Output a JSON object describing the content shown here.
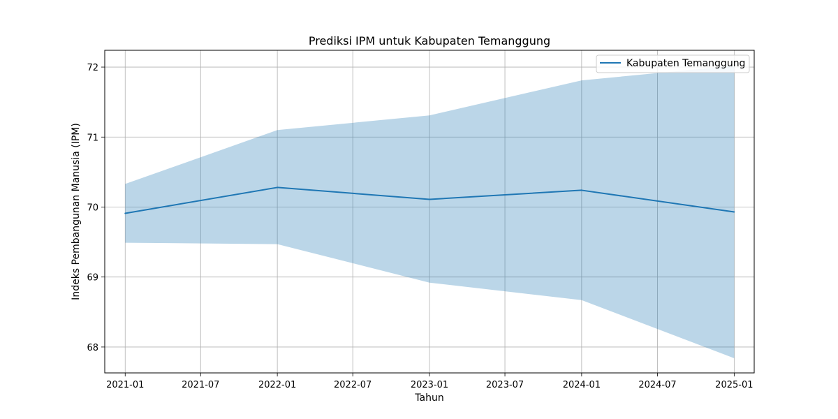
{
  "chart_data": {
    "type": "line",
    "title": "Prediksi IPM untuk Kabupaten Temanggung",
    "xlabel": "Tahun",
    "ylabel": "Indeks Pembangunan Manusia (IPM)",
    "x": [
      "2021-01-01",
      "2022-01-01",
      "2023-01-01",
      "2024-01-01",
      "2025-01-01"
    ],
    "series": [
      {
        "name": "Kabupaten Temanggung",
        "color": "#1f77b4",
        "values": [
          69.91,
          70.28,
          70.11,
          70.24,
          69.93
        ]
      }
    ],
    "band": {
      "color": "#1f77b4",
      "opacity": 0.3,
      "lower": [
        69.49,
        69.47,
        68.92,
        68.67,
        67.84
      ],
      "upper": [
        70.33,
        71.1,
        71.31,
        71.81,
        72.02
      ]
    },
    "xlim": [
      "2020-11-13",
      "2025-02-18"
    ],
    "ylim": [
      67.63,
      72.24
    ],
    "xticks": [
      "2021-01",
      "2021-07",
      "2022-01",
      "2022-07",
      "2023-01",
      "2023-07",
      "2024-01",
      "2024-07",
      "2025-01"
    ],
    "yticks": [
      68,
      69,
      70,
      71,
      72
    ],
    "grid": true,
    "legend_position": "top-right"
  }
}
